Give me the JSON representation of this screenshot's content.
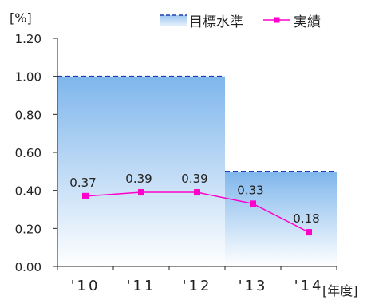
{
  "chart_data": {
    "type": "line",
    "ylabel": "[%]",
    "xlabel": "[年度]",
    "ylim": [
      0,
      1.2
    ],
    "y_ticks": [
      "0.00",
      "0.20",
      "0.40",
      "0.60",
      "0.80",
      "1.00",
      "1.20"
    ],
    "categories": [
      "'10",
      "'11",
      "'12",
      "'13",
      "'14"
    ],
    "grid": false,
    "legend_position": "top-right",
    "series": [
      {
        "name": "目標水準",
        "style": "filled area with dashed top line",
        "color": "#1f3fae",
        "fill_color": "#7fb6ec",
        "values": [
          1.0,
          1.0,
          1.0,
          0.5,
          0.5
        ]
      },
      {
        "name": "実績",
        "style": "line with square markers",
        "color": "#ff00cc",
        "values": [
          0.37,
          0.39,
          0.39,
          0.33,
          0.18
        ],
        "labels": [
          "0.37",
          "0.39",
          "0.39",
          "0.33",
          "0.18"
        ]
      }
    ]
  }
}
